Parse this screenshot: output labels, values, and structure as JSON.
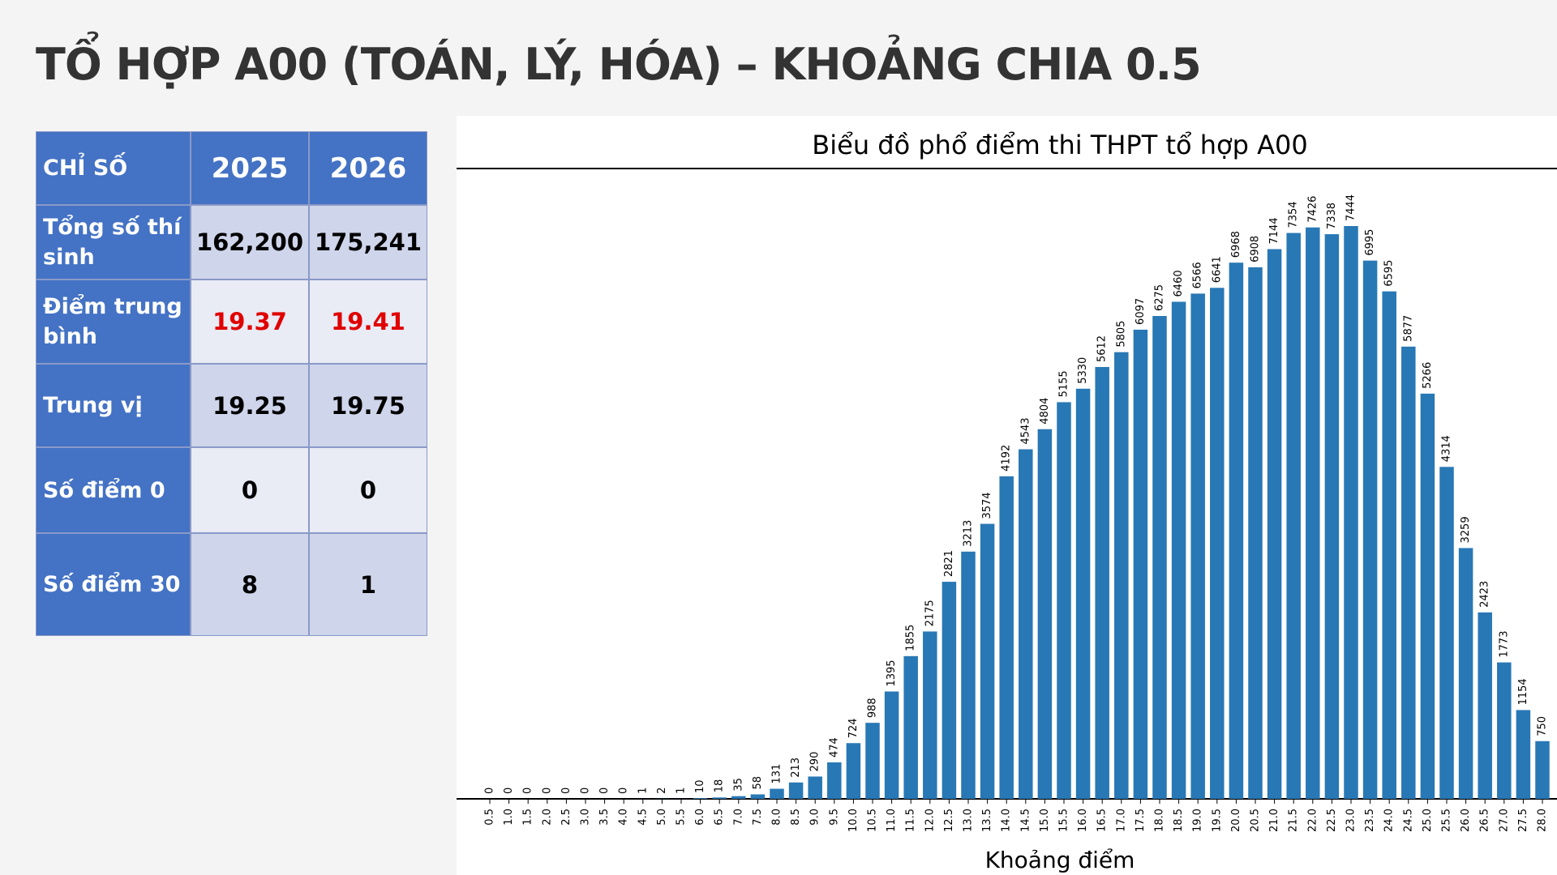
{
  "header": {
    "title": "TỔ HỢP A00 (TOÁN, LÝ, HÓA) – KHOẢNG CHIA 0.5"
  },
  "table": {
    "header": [
      "CHỈ SỐ",
      "2025",
      "2026"
    ],
    "rows": [
      [
        "Tổng số thí sinh",
        "162,200",
        "175,241"
      ],
      [
        "Điểm trung bình",
        "19.37",
        "19.41"
      ],
      [
        "Trung vị",
        "19.25",
        "19.75"
      ],
      [
        "Số điểm 0",
        "0",
        "0"
      ],
      [
        "Số điểm 30",
        "8",
        "1"
      ]
    ]
  },
  "chart_data": {
    "type": "bar",
    "title": "Biểu đồ phổ điểm thi THPT tổ hợp A00",
    "x_label": "Khoảng điểm",
    "color": "#2878b5",
    "categories": [
      "0.5",
      "1.0",
      "1.5",
      "2.0",
      "2.5",
      "3.0",
      "3.5",
      "4.0",
      "4.5",
      "5.0",
      "5.5",
      "6.0",
      "6.5",
      "7.0",
      "7.5",
      "8.0",
      "8.5",
      "9.0",
      "9.5",
      "10.0",
      "10.5",
      "11.0",
      "11.5",
      "12.0",
      "12.5",
      "13.0",
      "13.5",
      "14.0",
      "14.5",
      "15.0",
      "15.5",
      "16.0",
      "16.5",
      "17.0",
      "17.5",
      "18.0",
      "18.5",
      "19.0",
      "19.5",
      "20.0",
      "20.5",
      "21.0",
      "21.5",
      "22.0",
      "22.5",
      "23.0",
      "23.5",
      "24.0",
      "24.5",
      "25.0",
      "25.5",
      "26.0",
      "26.5",
      "27.0",
      "27.5",
      "28.0"
    ],
    "values": [
      0,
      0,
      0,
      0,
      0,
      0,
      0,
      0,
      1,
      2,
      1,
      10,
      18,
      35,
      58,
      131,
      213,
      290,
      474,
      724,
      988,
      1395,
      1855,
      2175,
      2821,
      3213,
      3574,
      4192,
      4543,
      4804,
      5155,
      5330,
      5612,
      5805,
      6097,
      6275,
      6460,
      6566,
      6641,
      6968,
      6908,
      7144,
      7354,
      7426,
      7338,
      7444,
      6995,
      6595,
      5877,
      5266,
      4314,
      3259,
      2423,
      1773,
      1154,
      750
    ]
  }
}
